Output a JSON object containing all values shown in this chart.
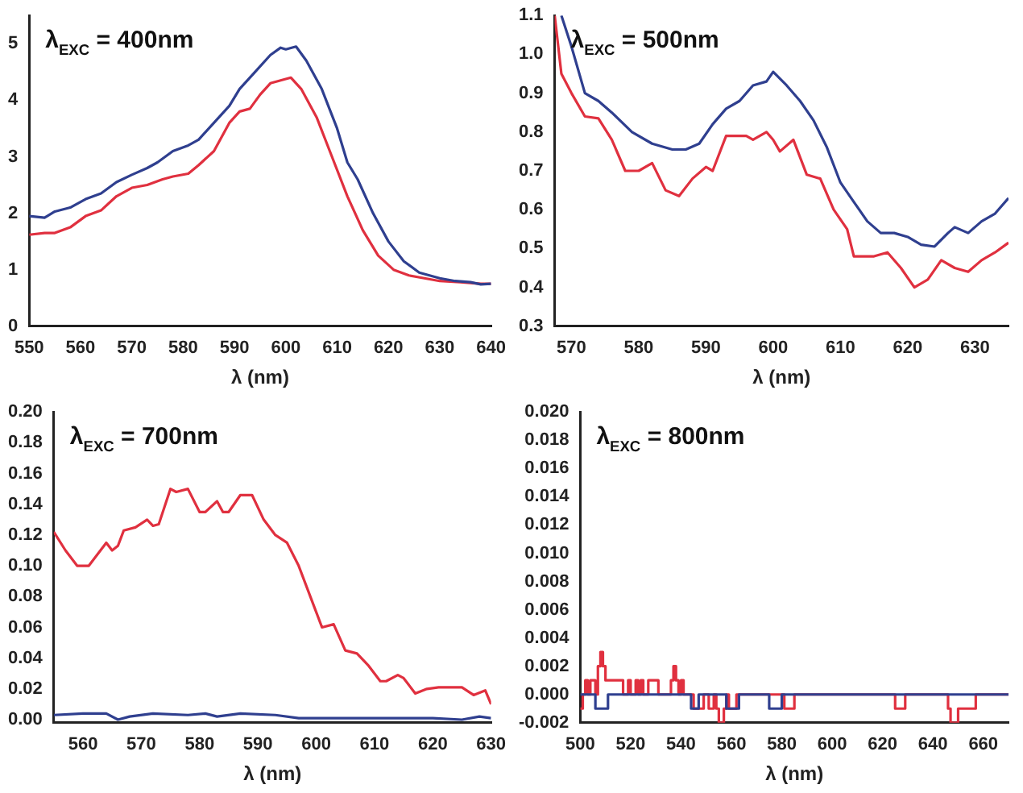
{
  "chart_data": [
    {
      "type": "line",
      "annotations": [
        "λ$_{EXC}$ = 400nm"
      ],
      "xlabel": "λ (nm)",
      "xlim": [
        550,
        640
      ],
      "xticks": [
        550,
        560,
        570,
        580,
        590,
        600,
        610,
        620,
        630,
        640
      ],
      "ylim": [
        0,
        5.5
      ],
      "yticks": [
        0,
        1,
        2,
        3,
        4,
        5
      ],
      "series": [
        {
          "color": "#2f3f8f",
          "x": [
            550,
            553,
            555,
            558,
            561,
            564,
            567,
            570,
            573,
            575,
            578,
            581,
            583,
            586,
            589,
            591,
            594,
            597,
            599,
            600,
            602,
            604,
            607,
            610,
            612,
            614,
            617,
            620,
            623,
            626,
            630,
            633,
            636,
            638,
            640
          ],
          "values": [
            1.95,
            1.92,
            2.03,
            2.1,
            2.25,
            2.35,
            2.55,
            2.68,
            2.8,
            2.9,
            3.1,
            3.2,
            3.3,
            3.6,
            3.9,
            4.2,
            4.5,
            4.8,
            4.93,
            4.9,
            4.95,
            4.7,
            4.2,
            3.5,
            2.9,
            2.6,
            2.0,
            1.5,
            1.15,
            0.95,
            0.85,
            0.8,
            0.78,
            0.74,
            0.75
          ]
        },
        {
          "color": "#e0303f",
          "x": [
            550,
            553,
            555,
            558,
            561,
            564,
            567,
            570,
            573,
            576,
            578,
            581,
            583,
            586,
            589,
            591,
            593,
            595,
            597,
            599,
            601,
            603,
            606,
            609,
            612,
            615,
            618,
            621,
            624,
            627,
            630,
            634,
            638,
            640
          ],
          "values": [
            1.62,
            1.65,
            1.65,
            1.75,
            1.95,
            2.05,
            2.3,
            2.45,
            2.5,
            2.6,
            2.65,
            2.7,
            2.85,
            3.1,
            3.6,
            3.8,
            3.85,
            4.1,
            4.3,
            4.35,
            4.4,
            4.2,
            3.7,
            3.0,
            2.3,
            1.7,
            1.25,
            1.0,
            0.9,
            0.85,
            0.8,
            0.78,
            0.75,
            0.75
          ]
        }
      ]
    },
    {
      "type": "line",
      "annotations": [
        "λ$_{EXC}$ = 500nm"
      ],
      "xlabel": "λ (nm)",
      "xlim": [
        567.5,
        635
      ],
      "xticks": [
        570,
        580,
        590,
        600,
        610,
        620,
        630
      ],
      "ylim": [
        0.3,
        1.1
      ],
      "yticks": [
        0.3,
        0.4,
        0.5,
        0.6,
        0.7,
        0.8,
        0.9,
        {
          "value": 1,
          "label": "1.0"
        },
        1.1
      ],
      "series": [
        {
          "color": "#2f3f8f",
          "x": [
            568.5,
            570,
            572,
            574,
            576,
            579,
            582,
            585,
            587,
            589,
            591,
            593,
            595,
            597,
            599,
            600,
            602,
            604,
            606,
            608,
            610,
            612,
            614,
            616,
            618,
            620,
            622,
            624,
            626,
            627,
            629,
            631,
            633,
            635
          ],
          "values": [
            1.1,
            1.02,
            0.9,
            0.88,
            0.85,
            0.8,
            0.77,
            0.755,
            0.755,
            0.77,
            0.82,
            0.86,
            0.88,
            0.92,
            0.93,
            0.955,
            0.92,
            0.88,
            0.83,
            0.76,
            0.67,
            0.62,
            0.57,
            0.54,
            0.54,
            0.53,
            0.51,
            0.505,
            0.54,
            0.555,
            0.54,
            0.57,
            0.59,
            0.63
          ]
        },
        {
          "color": "#e0303f",
          "x": [
            567.5,
            568.5,
            570,
            572,
            574,
            576,
            578,
            580,
            582,
            584,
            586,
            588,
            590,
            591,
            593,
            596,
            597,
            599,
            600,
            601,
            603,
            605,
            607,
            609,
            611,
            612,
            615,
            617,
            619,
            621,
            623,
            625,
            627,
            629,
            631,
            633,
            635
          ],
          "values": [
            1.1,
            0.95,
            0.9,
            0.84,
            0.835,
            0.78,
            0.7,
            0.7,
            0.72,
            0.65,
            0.635,
            0.68,
            0.71,
            0.7,
            0.79,
            0.79,
            0.78,
            0.8,
            0.78,
            0.75,
            0.78,
            0.69,
            0.68,
            0.6,
            0.55,
            0.48,
            0.48,
            0.49,
            0.45,
            0.4,
            0.42,
            0.47,
            0.45,
            0.44,
            0.47,
            0.49,
            0.515
          ]
        }
      ]
    },
    {
      "type": "line",
      "annotations": [
        "λ$_{EXC}$ = 700nm"
      ],
      "xlabel": "λ (nm)",
      "xlim": [
        555,
        630
      ],
      "xticks": [
        560,
        570,
        580,
        590,
        600,
        610,
        620,
        630
      ],
      "ylim": [
        -0.002,
        0.2
      ],
      "yticks": [
        {
          "value": 0,
          "label": "0.00"
        },
        0.02,
        0.04,
        0.06,
        0.08,
        {
          "value": 0.1,
          "label": "0.10"
        },
        0.12,
        0.14,
        0.16,
        0.18,
        {
          "value": 0.2,
          "label": "0.20"
        }
      ],
      "series": [
        {
          "color": "#2f3f8f",
          "x": [
            555,
            560,
            564,
            566,
            568,
            572,
            578,
            581,
            583,
            587,
            593,
            597,
            600,
            605,
            610,
            615,
            620,
            625,
            628,
            630
          ],
          "values": [
            0.003,
            0.004,
            0.004,
            0,
            0.002,
            0.004,
            0.003,
            0.004,
            0.002,
            0.004,
            0.003,
            0.001,
            0.001,
            0.001,
            0.001,
            0.001,
            0.001,
            0,
            0.002,
            0.001
          ]
        },
        {
          "color": "#e0303f",
          "x": [
            555,
            557,
            559,
            561,
            562,
            564,
            565,
            566,
            567,
            569,
            571,
            572,
            573,
            575,
            576,
            578,
            580,
            581,
            583,
            584,
            585,
            587,
            589,
            591,
            593,
            595,
            597,
            600,
            601,
            603,
            605,
            607,
            609,
            611,
            612,
            614,
            615,
            617,
            619,
            621,
            625,
            627,
            629,
            630
          ],
          "values": [
            0.122,
            0.11,
            0.1,
            0.1,
            0.105,
            0.115,
            0.11,
            0.113,
            0.123,
            0.125,
            0.13,
            0.126,
            0.127,
            0.15,
            0.148,
            0.15,
            0.135,
            0.135,
            0.142,
            0.135,
            0.135,
            0.146,
            0.146,
            0.13,
            0.12,
            0.115,
            0.1,
            0.07,
            0.06,
            0.062,
            0.045,
            0.043,
            0.035,
            0.025,
            0.025,
            0.029,
            0.027,
            0.017,
            0.02,
            0.021,
            0.021,
            0.016,
            0.019,
            0.01
          ]
        }
      ]
    },
    {
      "type": "step",
      "annotations": [
        "λ$_{EXC}$ = 800nm"
      ],
      "xlabel": "λ (nm)",
      "xlim": [
        500,
        670
      ],
      "xticks": [
        500,
        520,
        540,
        560,
        580,
        600,
        620,
        640,
        660
      ],
      "ylim": [
        -0.002,
        0.02
      ],
      "yticks": [
        -0.002,
        {
          "value": 0,
          "label": "0.000"
        },
        0.002,
        0.004,
        0.006,
        0.008,
        {
          "value": 0.01,
          "label": "0.010"
        },
        0.012,
        0.014,
        0.016,
        0.018,
        {
          "value": 0.02,
          "label": "0.020"
        }
      ],
      "series": [
        {
          "color": "#2f3f8f",
          "x": [
            500,
            505,
            506,
            511,
            543,
            544,
            547,
            557,
            558,
            563,
            574,
            575,
            580,
            670
          ],
          "values": [
            0,
            0,
            -0.001,
            0,
            0,
            -0.001,
            0,
            0,
            -0.001,
            0,
            0,
            -0.001,
            0,
            0
          ]
        },
        {
          "color": "#e0303f",
          "x": [
            500,
            501,
            502,
            503,
            504,
            505,
            506,
            507,
            508,
            509,
            510,
            513,
            516,
            517,
            519,
            520,
            521,
            522,
            523,
            524,
            525,
            527,
            530,
            531,
            535,
            536,
            537,
            538,
            539,
            540,
            541,
            543,
            545,
            548,
            549,
            551,
            553,
            554,
            555,
            557,
            558,
            559,
            562,
            580,
            581,
            585,
            624,
            625,
            629,
            645,
            646,
            647,
            650,
            657,
            670
          ],
          "values": [
            -0.001,
            0,
            0.001,
            0,
            0.001,
            0.001,
            0,
            0.002,
            0.003,
            0.002,
            0.001,
            0.001,
            0.001,
            0,
            0.001,
            0,
            0,
            0.001,
            0,
            0.001,
            0,
            0.001,
            0.001,
            0,
            0,
            0.001,
            0.002,
            0.001,
            0,
            0.001,
            0,
            0,
            -0.001,
            -0.001,
            0,
            -0.001,
            0,
            -0.001,
            -0.002,
            -0.001,
            0,
            -0.001,
            0,
            0,
            -0.001,
            0,
            0,
            -0.001,
            0,
            0,
            -0.001,
            -0.002,
            -0.001,
            0,
            0
          ]
        }
      ]
    }
  ]
}
